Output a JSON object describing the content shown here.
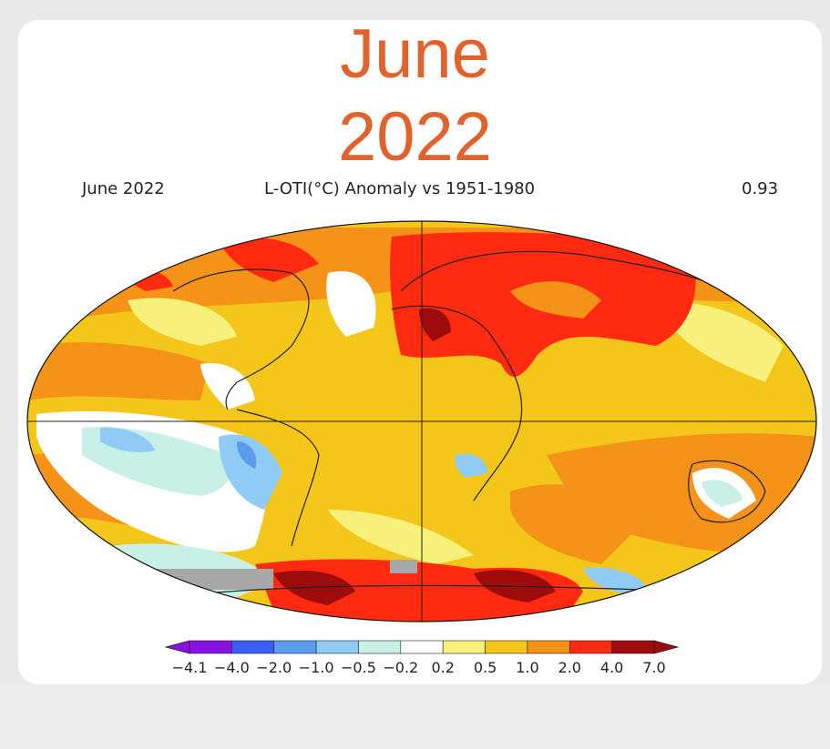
{
  "headline": {
    "month": "June",
    "year": "2022"
  },
  "map_header": {
    "left": "June 2022",
    "center": "L-OTI(°C) Anomaly vs 1951-1980",
    "right": "0.93"
  },
  "colorbar": {
    "ticks": [
      "−4.1",
      "−4.0",
      "−2.0",
      "−1.0",
      "−0.5",
      "−0.2",
      "0.2",
      "0.5",
      "1.0",
      "2.0",
      "4.0",
      "7.0"
    ],
    "colors": [
      "#8a10e0",
      "#3a5ff5",
      "#5b9bf0",
      "#8fcbf5",
      "#c8f0e6",
      "#ffffff",
      "#f7f07a",
      "#f5c61a",
      "#f59218",
      "#ff2a10",
      "#9e0b0b"
    ]
  },
  "legend_colors": {
    "very_cold": "#8a10e0",
    "cold": "#5b9bf0",
    "cool": "#8fcbf5",
    "neutral": "#ffffff",
    "warm": "#f5c61a",
    "hot": "#f59218",
    "very_hot": "#ff2a10",
    "extreme": "#9e0b0b",
    "no_data": "#a8a8a8"
  }
}
